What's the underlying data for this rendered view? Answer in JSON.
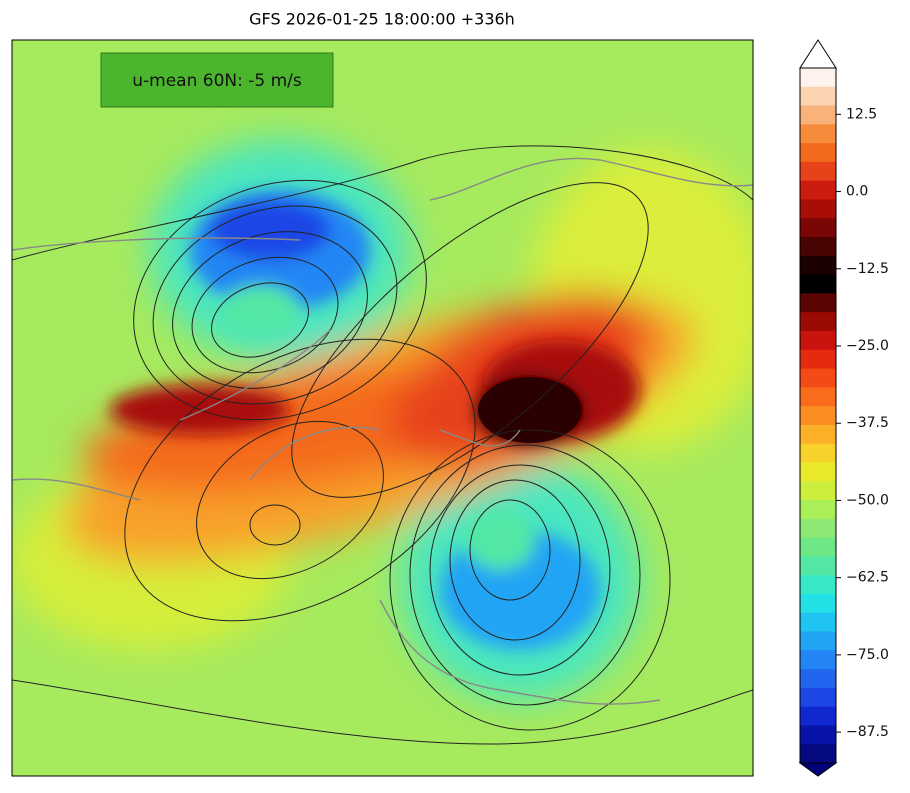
{
  "title": "GFS 2026-01-25 18:00:00 +336h",
  "annotation": "u-mean 60N: -5 m/s",
  "colorbar": {
    "range": [
      -92.5,
      20
    ],
    "ticks": [
      12.5,
      {
        "value": 0,
        "label": "0.0"
      },
      {
        "value": -12.5,
        "label": "−12.5"
      },
      {
        "value": -25,
        "label": "−25.0"
      },
      {
        "value": -37.5,
        "label": "−37.5"
      },
      {
        "value": -50,
        "label": "−50.0"
      },
      {
        "value": -62.5,
        "label": "−62.5"
      },
      {
        "value": -75,
        "label": "−75.0"
      },
      {
        "value": -87.5,
        "label": "−87.5"
      }
    ],
    "colors": [
      "#fdf3ec",
      "#fbd3b0",
      "#f9b27a",
      "#f78b3c",
      "#f46a1c",
      "#e8421a",
      "#cc1c10",
      "#a80d08",
      "#7a0606",
      "#4a0303",
      "#1a0000",
      "#000000",
      "#5a0404",
      "#9c0a06",
      "#c8140c",
      "#e62a10",
      "#f44a16",
      "#f86c1c",
      "#fa8e22",
      "#fbb028",
      "#f6d22a",
      "#e8ea2a",
      "#ccef3e",
      "#aaef58",
      "#8ce872",
      "#6ee886",
      "#52e8a4",
      "#36e8c6",
      "#22e0e6",
      "#20c4f2",
      "#22a4f4",
      "#2486f4",
      "#2266f0",
      "#1c46e6",
      "#1028d0",
      "#0814a8",
      "#050a80"
    ],
    "min_color": "#00007a",
    "max_color": "#ffffff"
  }
}
